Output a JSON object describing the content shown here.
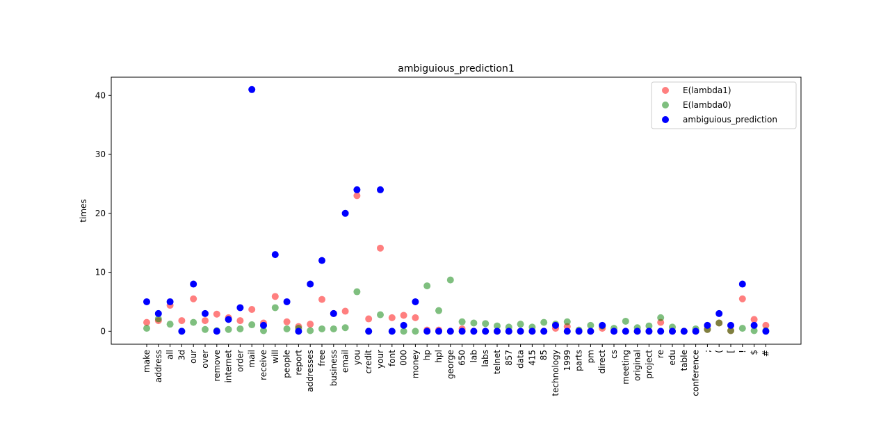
{
  "chart_data": {
    "type": "scatter",
    "title": "ambiguious_prediction1",
    "xlabel": "",
    "ylabel": "times",
    "ylim": [
      -2.2,
      43.1
    ],
    "yticks": [
      0,
      10,
      20,
      30,
      40
    ],
    "grid": false,
    "legend_position": "top-right",
    "categories": [
      "make",
      "address",
      "all",
      "3d",
      "our",
      "over",
      "remove",
      "internet",
      "order",
      "mail",
      "receive",
      "will",
      "people",
      "report",
      "addresses",
      "free",
      "business",
      "email",
      "you",
      "credit",
      "your",
      "font",
      "000",
      "money",
      "hp",
      "hpl",
      "george",
      "650",
      "lab",
      "labs",
      "telnet",
      "857",
      "data",
      "415",
      "85",
      "technology",
      "1999",
      "parts",
      "pm",
      "direct",
      "cs",
      "meeting",
      "original",
      "project",
      "re",
      "edu",
      "table",
      "conference",
      ";",
      "(",
      "[",
      "!",
      "$",
      "#"
    ],
    "series": [
      {
        "name": "E(lambda1)",
        "color": "#ff0000",
        "alpha": 0.5,
        "values": [
          1.5,
          1.8,
          4.4,
          1.8,
          5.5,
          1.8,
          2.9,
          2.3,
          1.8,
          3.7,
          1.4,
          5.9,
          1.6,
          0.8,
          1.2,
          5.4,
          3.0,
          3.4,
          23.0,
          2.1,
          14.1,
          2.3,
          2.7,
          2.3,
          0.2,
          0.2,
          0.0,
          0.4,
          0.0,
          0.0,
          0.0,
          0.0,
          0.0,
          0.0,
          0.0,
          0.5,
          0.8,
          0.0,
          0.0,
          0.5,
          0.0,
          0.0,
          0.0,
          0.0,
          1.5,
          0.0,
          0.0,
          0.0,
          0.3,
          1.4,
          0.1,
          5.5,
          2.0,
          1.0
        ]
      },
      {
        "name": "E(lambda0)",
        "color": "#008000",
        "alpha": 0.5,
        "values": [
          0.5,
          2.1,
          1.2,
          0.0,
          1.5,
          0.3,
          0.1,
          0.3,
          0.4,
          1.1,
          0.1,
          4.0,
          0.4,
          0.5,
          0.1,
          0.4,
          0.4,
          0.6,
          6.7,
          0.0,
          2.8,
          0.0,
          0.0,
          0.0,
          7.7,
          3.5,
          8.7,
          1.6,
          1.4,
          1.3,
          0.9,
          0.7,
          1.2,
          0.7,
          1.5,
          1.2,
          1.6,
          0.2,
          1.0,
          0.9,
          0.5,
          1.7,
          0.6,
          0.9,
          2.3,
          0.7,
          0.0,
          0.4,
          0.3,
          1.4,
          0.1,
          0.5,
          0.1,
          0.1
        ]
      },
      {
        "name": "ambiguious_prediction",
        "color": "#0000ff",
        "alpha": 1.0,
        "values": [
          5,
          3,
          5,
          0,
          8,
          3,
          0,
          2,
          4,
          41,
          1,
          13,
          5,
          0,
          8,
          12,
          3,
          20,
          24,
          0,
          24,
          0,
          1,
          5,
          0,
          0,
          0,
          0,
          0,
          0,
          0,
          0,
          0,
          0,
          0,
          1,
          0,
          0,
          0,
          1,
          0,
          0,
          0,
          0,
          0,
          0,
          0,
          0,
          1,
          3,
          1,
          8,
          1,
          0
        ]
      }
    ]
  }
}
